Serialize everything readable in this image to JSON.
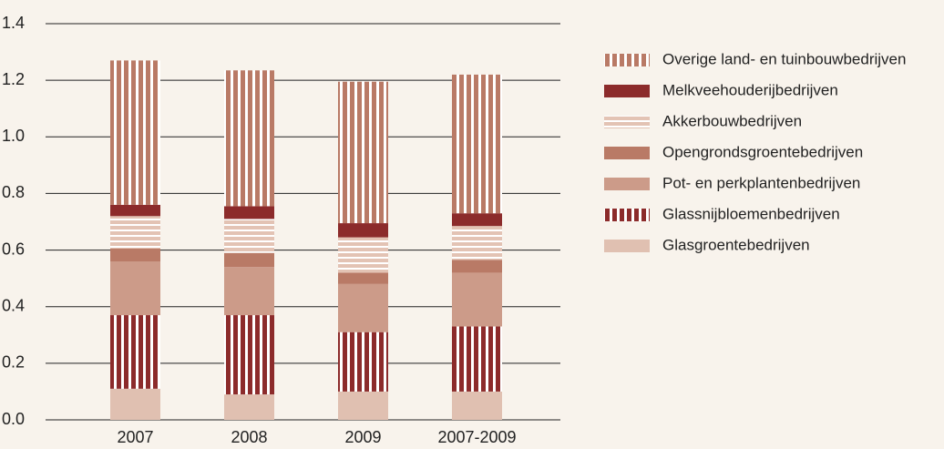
{
  "chart_data": {
    "type": "stacked-bar",
    "categories": [
      "2007",
      "2008",
      "2009",
      "2007-2009"
    ],
    "series": [
      {
        "name": "Glasgroentebedrijven",
        "color": "#e0c0b1",
        "pattern": "solid",
        "values": [
          0.11,
          0.09,
          0.1,
          0.1
        ]
      },
      {
        "name": "Glassnijbloemenbedrijven",
        "color": "#8c2b2b",
        "pattern": "vertical-stripes",
        "values": [
          0.26,
          0.28,
          0.21,
          0.23
        ]
      },
      {
        "name": "Pot- en perkplantenbedrijven",
        "color": "#cc9b89",
        "pattern": "solid",
        "values": [
          0.19,
          0.17,
          0.17,
          0.19
        ]
      },
      {
        "name": "Opengrondsgroentebedrijven",
        "color": "#b97a66",
        "pattern": "solid",
        "values": [
          0.045,
          0.05,
          0.04,
          0.045
        ]
      },
      {
        "name": "Akkerbouwbedrijven",
        "color": "#e3c3b4",
        "pattern": "horizontal-stripes",
        "values": [
          0.115,
          0.12,
          0.125,
          0.12
        ]
      },
      {
        "name": "Melkveehouderijbedrijven",
        "color": "#8c2b2b",
        "pattern": "solid",
        "values": [
          0.04,
          0.045,
          0.05,
          0.045
        ]
      },
      {
        "name": "Overige land- en tuinbouwbedrijven",
        "color": "#b97a66",
        "pattern": "vertical-stripes",
        "values": [
          0.51,
          0.48,
          0.5,
          0.49
        ]
      }
    ],
    "ylim": [
      0,
      1.4
    ],
    "yticks": [
      {
        "value": 0,
        "label": "0.0"
      },
      0.2,
      0.4,
      0.6,
      0.8,
      {
        "value": 1,
        "label": "1.0"
      },
      1.2,
      1.4
    ],
    "grid": true,
    "legend": "right"
  }
}
